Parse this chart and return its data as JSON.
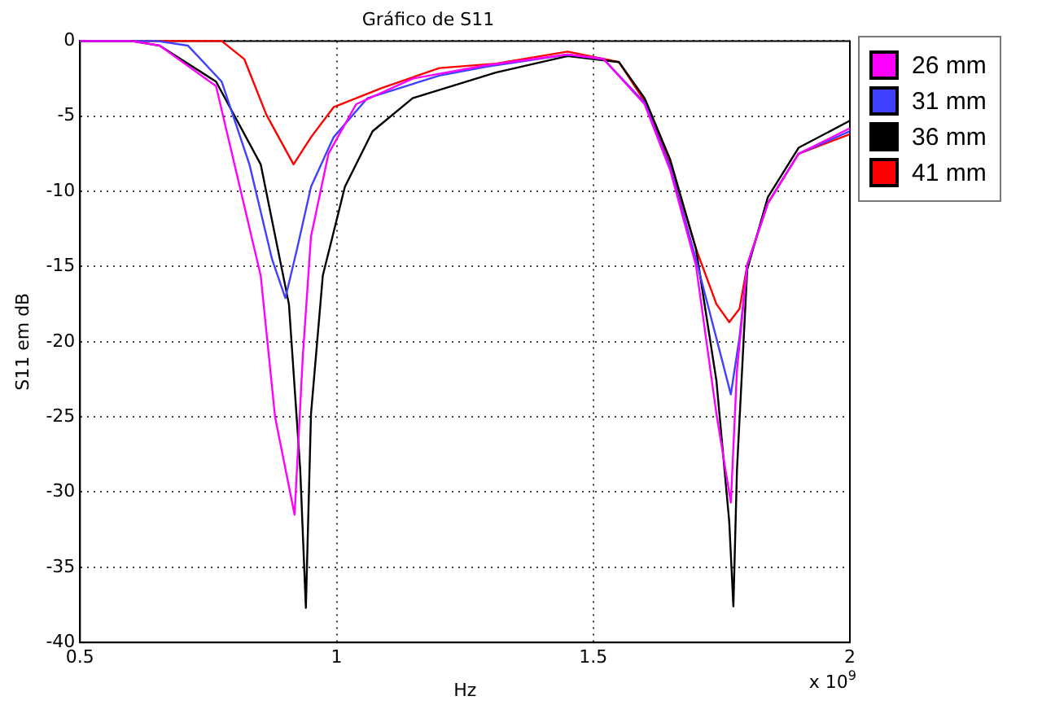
{
  "chart_data": {
    "type": "line",
    "title": "Gráfico de S11",
    "xlabel": "Hz",
    "ylabel": "S11 em dB",
    "annotations": [
      "x 10$^{9}$"
    ],
    "xlim": [
      0.5,
      2
    ],
    "xticks": [
      0.5,
      1,
      1.5,
      2
    ],
    "ylim": [
      -40,
      0
    ],
    "yticks": [
      -40,
      -35,
      -30,
      -25,
      -20,
      -15,
      -10,
      -5,
      0
    ],
    "grid": true,
    "legend": "top right",
    "marker": "none",
    "line_style": "solid",
    "series": [
      {
        "name": "26 mm",
        "color": "#ff00ff",
        "x": [
          0.5,
          0.6,
          0.655,
          0.765,
          0.852,
          0.88,
          0.918,
          0.934,
          0.95,
          0.984,
          1.038,
          1.148,
          1.293,
          1.45,
          1.52,
          1.6,
          1.65,
          1.7,
          1.74,
          1.768,
          1.78,
          1.8,
          1.84,
          1.9,
          2.0
        ],
        "values": [
          0,
          0,
          -0.3,
          -3,
          -15.6,
          -25,
          -31.5,
          -21,
          -13,
          -7.5,
          -4.2,
          -2.5,
          -1.6,
          -0.9,
          -1.2,
          -4.2,
          -8.6,
          -14.9,
          -24.8,
          -30.7,
          -21.9,
          -14.9,
          -10.8,
          -7.5,
          -5.8
        ]
      },
      {
        "name": "31 mm",
        "color": "#4040ff",
        "x": [
          0.5,
          0.65,
          0.71,
          0.776,
          0.83,
          0.874,
          0.9,
          0.923,
          0.95,
          0.994,
          1.06,
          1.2,
          1.293,
          1.45,
          1.52,
          1.6,
          1.65,
          1.7,
          1.75,
          1.768,
          1.785,
          1.8,
          1.84,
          1.9,
          2.0
        ],
        "values": [
          0,
          0,
          -0.3,
          -2.7,
          -8.2,
          -14.5,
          -17.1,
          -13.8,
          -9.7,
          -6.4,
          -3.8,
          -2.3,
          -1.7,
          -0.9,
          -1.2,
          -4.1,
          -8.4,
          -14.5,
          -21.1,
          -23.5,
          -19.7,
          -14.9,
          -10.8,
          -7.5,
          -6
        ]
      },
      {
        "name": "36 mm",
        "color": "#000000",
        "x": [
          0.5,
          0.6,
          0.655,
          0.765,
          0.852,
          0.907,
          0.929,
          0.94,
          0.95,
          0.973,
          1.016,
          1.07,
          1.148,
          1.31,
          1.45,
          1.55,
          1.6,
          1.65,
          1.7,
          1.74,
          1.765,
          1.773,
          1.78,
          1.8,
          1.84,
          1.9,
          2.0
        ],
        "values": [
          0,
          0,
          -0.3,
          -2.7,
          -8.2,
          -17.5,
          -28.5,
          -37.7,
          -24.8,
          -15.6,
          -9.7,
          -6,
          -3.8,
          -2.1,
          -1,
          -1.4,
          -3.8,
          -7.9,
          -13.8,
          -22.6,
          -32,
          -37.6,
          -28.5,
          -15.2,
          -10.4,
          -7.1,
          -5.3
        ]
      },
      {
        "name": "41 mm",
        "color": "#ff0000",
        "x": [
          0.5,
          0.776,
          0.82,
          0.863,
          0.916,
          0.95,
          0.994,
          1.09,
          1.2,
          1.31,
          1.45,
          1.55,
          1.6,
          1.65,
          1.7,
          1.74,
          1.765,
          1.785,
          1.8,
          1.84,
          1.9,
          2.0
        ],
        "values": [
          0,
          0,
          -1.2,
          -4.9,
          -8.2,
          -6.4,
          -4.4,
          -3.1,
          -1.8,
          -1.5,
          -0.7,
          -1.4,
          -4,
          -8.2,
          -13.8,
          -17.5,
          -18.7,
          -17.8,
          -14.9,
          -10.8,
          -7.5,
          -6.2
        ]
      }
    ]
  }
}
